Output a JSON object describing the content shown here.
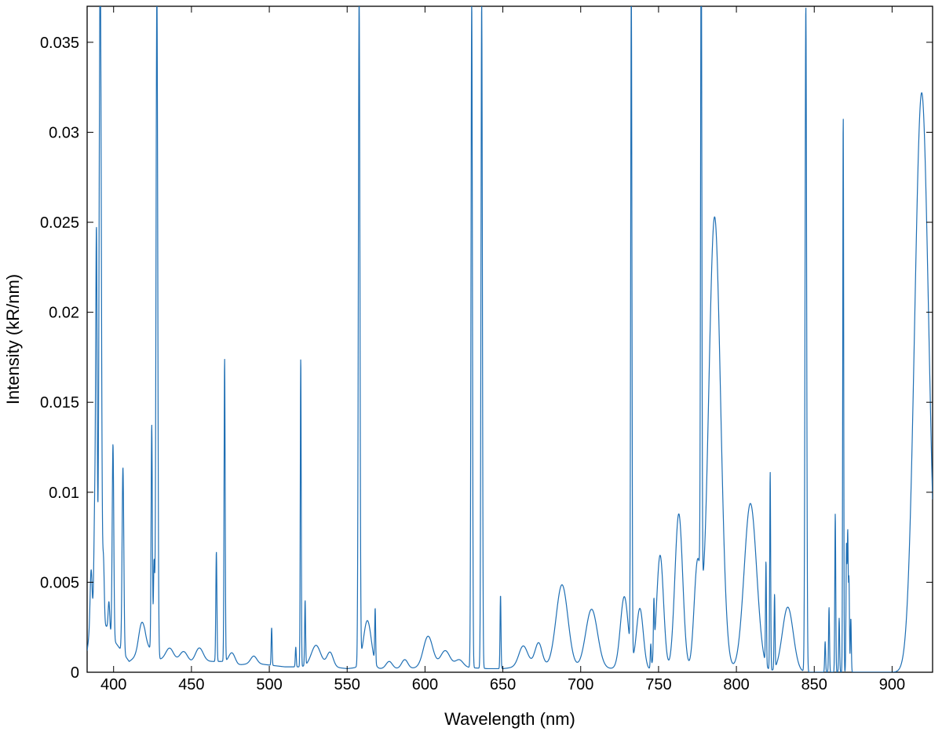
{
  "chart_data": {
    "type": "line",
    "title": "",
    "xlabel": "Wavelength (nm)",
    "ylabel": "Intensity (kR/nm)",
    "xlim": [
      383,
      926
    ],
    "ylim": [
      0,
      0.037
    ],
    "grid": false,
    "legend": "none",
    "series_color": "#1f6fb4",
    "x_ticks": [
      400,
      450,
      500,
      550,
      600,
      650,
      700,
      750,
      800,
      850,
      900
    ],
    "x_tick_labels": [
      "400",
      "450",
      "500",
      "550",
      "600",
      "650",
      "700",
      "750",
      "800",
      "850",
      "900"
    ],
    "y_ticks": [
      0,
      0.005,
      0.01,
      0.015,
      0.02,
      0.025,
      0.03,
      0.035
    ],
    "y_tick_labels": [
      "0",
      "0.005",
      "0.01",
      "0.015",
      "0.02",
      "0.025",
      "0.03",
      "0.035"
    ],
    "baseline": [
      [
        383,
        0.0012
      ],
      [
        386,
        0.0032
      ],
      [
        396,
        0.0025
      ],
      [
        400,
        0.0018
      ],
      [
        405,
        0.0012
      ],
      [
        410,
        0.0006
      ],
      [
        415,
        0.0009
      ],
      [
        420,
        0.0015
      ],
      [
        425,
        0.0012
      ],
      [
        430,
        0.0007
      ],
      [
        440,
        0.0006
      ],
      [
        450,
        0.0005
      ],
      [
        460,
        0.0006
      ],
      [
        470,
        0.0006
      ],
      [
        480,
        0.0004
      ],
      [
        490,
        0.0005
      ],
      [
        500,
        0.0004
      ],
      [
        510,
        0.0003
      ],
      [
        520,
        0.0003
      ],
      [
        530,
        0.0004
      ],
      [
        540,
        0.0003
      ],
      [
        550,
        0.0002
      ],
      [
        560,
        0.0003
      ],
      [
        570,
        0.0002
      ],
      [
        580,
        0.0002
      ],
      [
        590,
        0.0002
      ],
      [
        600,
        0.0003
      ],
      [
        610,
        0.0003
      ],
      [
        620,
        0.0003
      ],
      [
        640,
        0.0002
      ],
      [
        650,
        0.0002
      ],
      [
        660,
        0.0003
      ],
      [
        670,
        0.0005
      ],
      [
        680,
        0.0003
      ],
      [
        700,
        0.0002
      ],
      [
        730,
        0.0002
      ],
      [
        745,
        0.0001
      ],
      [
        760,
        0.0001
      ],
      [
        800,
        0.0001
      ],
      [
        840,
        0.0
      ],
      [
        880,
        0.0
      ],
      [
        926,
        0.0
      ]
    ],
    "bands": [
      [
        418,
        0.0015,
        2.0
      ],
      [
        436,
        0.0007,
        2.5
      ],
      [
        445,
        0.0006,
        2.5
      ],
      [
        455,
        0.0008,
        2.5
      ],
      [
        476,
        0.0006,
        2.0
      ],
      [
        490,
        0.0004,
        2.0
      ],
      [
        530,
        0.0011,
        3.0
      ],
      [
        539,
        0.0008,
        2.0
      ],
      [
        563,
        0.0026,
        2.5
      ],
      [
        577,
        0.0004,
        2.0
      ],
      [
        587,
        0.0005,
        2.0
      ],
      [
        602,
        0.0017,
        3.0
      ],
      [
        613,
        0.0009,
        3.0
      ],
      [
        622,
        0.0004,
        2.5
      ],
      [
        663,
        0.0011,
        2.8
      ],
      [
        673,
        0.0012,
        2.2
      ],
      [
        688,
        0.0046,
        3.8
      ],
      [
        707,
        0.0033,
        3.8
      ],
      [
        728,
        0.004,
        2.5
      ],
      [
        738,
        0.0034,
        2.2
      ],
      [
        751,
        0.0064,
        2.2
      ],
      [
        763,
        0.0087,
        2.5
      ],
      [
        775,
        0.0058,
        2.2
      ],
      [
        786,
        0.0252,
        3.8
      ],
      [
        809,
        0.0093,
        4.0
      ],
      [
        833,
        0.0036,
        3.5
      ],
      [
        919,
        0.0322,
        4.5
      ]
    ],
    "lines": [
      [
        385.5,
        0.0028,
        0.6
      ],
      [
        388,
        0.0065,
        0.6
      ],
      [
        389,
        0.02,
        0.45
      ],
      [
        391.4,
        0.037,
        0.7
      ],
      [
        393.5,
        0.0034,
        0.5
      ],
      [
        397,
        0.0016,
        0.5
      ],
      [
        399.6,
        0.0108,
        0.5
      ],
      [
        406,
        0.0103,
        0.55
      ],
      [
        424.5,
        0.0125,
        0.4
      ],
      [
        426,
        0.005,
        0.4
      ],
      [
        427.8,
        0.037,
        0.55
      ],
      [
        466,
        0.0061,
        0.35
      ],
      [
        471.3,
        0.0168,
        0.35
      ],
      [
        501.5,
        0.0021,
        0.3
      ],
      [
        517,
        0.0011,
        0.3
      ],
      [
        520.2,
        0.0172,
        0.3
      ],
      [
        523,
        0.0036,
        0.3
      ],
      [
        557.7,
        0.037,
        0.5
      ],
      [
        568,
        0.003,
        0.3
      ],
      [
        630,
        0.037,
        0.45
      ],
      [
        636.4,
        0.037,
        0.45
      ],
      [
        648.5,
        0.0041,
        0.3
      ],
      [
        732.5,
        0.037,
        0.4
      ],
      [
        745,
        0.0013,
        0.3
      ],
      [
        747,
        0.0028,
        0.3
      ],
      [
        777.4,
        0.037,
        0.4
      ],
      [
        819,
        0.0057,
        0.3
      ],
      [
        821.7,
        0.011,
        0.3
      ],
      [
        824.5,
        0.0041,
        0.3
      ],
      [
        844.6,
        0.037,
        0.5
      ],
      [
        857,
        0.0017,
        0.3
      ],
      [
        859.5,
        0.0036,
        0.3
      ],
      [
        863.5,
        0.0088,
        0.3
      ],
      [
        866,
        0.003,
        0.3
      ],
      [
        868.6,
        0.031,
        0.3
      ],
      [
        870.7,
        0.007,
        0.3
      ],
      [
        871.5,
        0.0076,
        0.3
      ],
      [
        872.3,
        0.0051,
        0.3
      ],
      [
        873.5,
        0.003,
        0.3
      ]
    ]
  }
}
